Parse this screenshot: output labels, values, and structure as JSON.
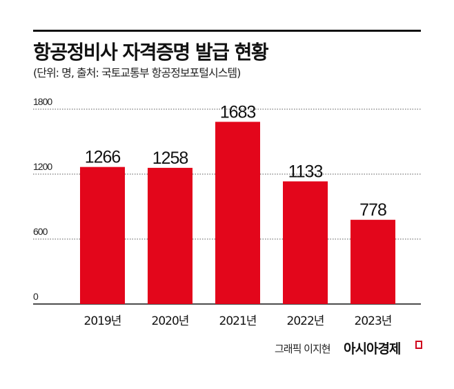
{
  "chart_data": {
    "type": "bar",
    "title": "항공정비사 자격증명 발급 현황",
    "subtitle": "(단위: 명, 출처: 국토교통부 항공정보포털시스템)",
    "categories": [
      "2019년",
      "2020년",
      "2021년",
      "2022년",
      "2023년"
    ],
    "values": [
      1266,
      1258,
      1683,
      1133,
      778
    ],
    "yticks": [
      0,
      600,
      1200,
      1800
    ],
    "ylim": [
      0,
      1800
    ],
    "xlabel": "",
    "ylabel": "",
    "grid": true,
    "bar_color": "#e3061b"
  },
  "footer": {
    "credit": "그래픽 이지현",
    "brand": "아시아경제"
  }
}
